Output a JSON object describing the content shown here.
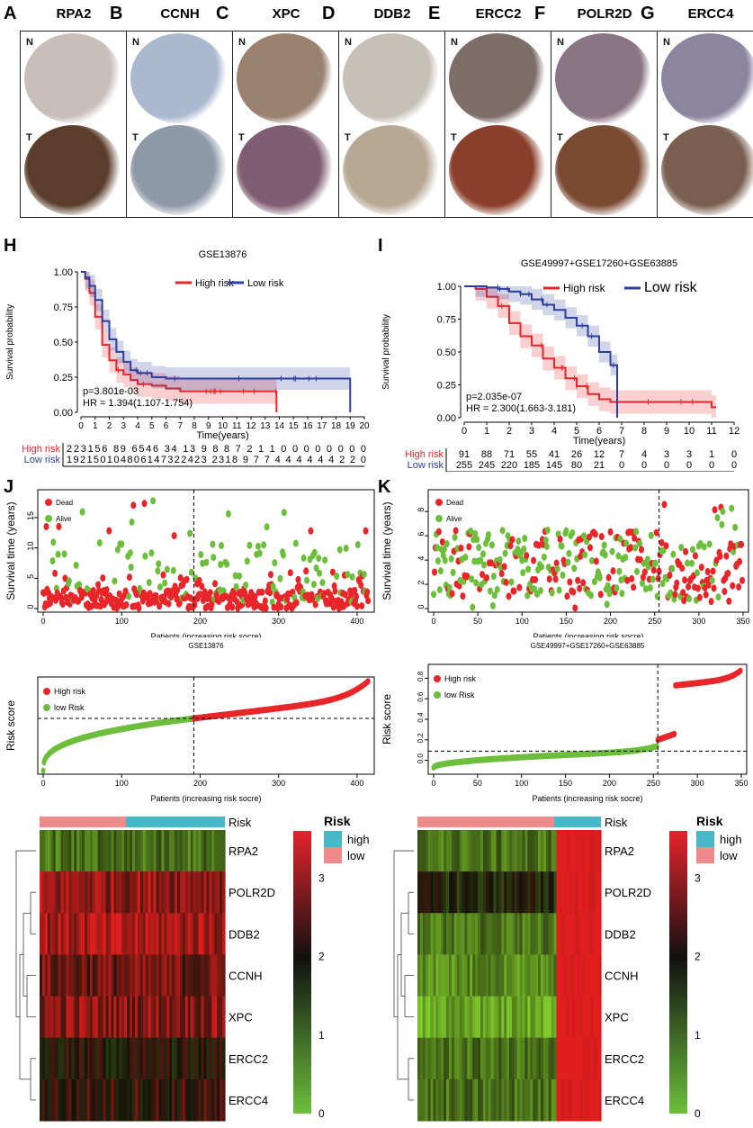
{
  "ihc": {
    "panels": [
      {
        "letter": "A",
        "gene": "RPA2",
        "n_color": "#c9bfba",
        "t_color": "#5a3e2b"
      },
      {
        "letter": "B",
        "gene": "CCNH",
        "n_color": "#aab9cf",
        "t_color": "#8d98a8"
      },
      {
        "letter": "C",
        "gene": "XPC",
        "n_color": "#9a8170",
        "t_color": "#7f5d72"
      },
      {
        "letter": "D",
        "gene": "DDB2",
        "n_color": "#c6c0b8",
        "t_color": "#b7a893"
      },
      {
        "letter": "E",
        "gene": "ERCC2",
        "n_color": "#7d6e6a",
        "t_color": "#8a3f2b"
      },
      {
        "letter": "F",
        "gene": "POLR2D",
        "n_color": "#8a7585",
        "t_color": "#7b4a32"
      },
      {
        "letter": "G",
        "gene": "ERCC4",
        "n_color": "#8b85a0",
        "t_color": "#7a5f50"
      }
    ],
    "n_label": "N",
    "t_label": "T"
  },
  "chart_data": [
    {
      "id": "H",
      "type": "line",
      "title": "GSE13876",
      "xlabel": "Time(years)",
      "ylabel": "Survival probability",
      "xlim": [
        0,
        20
      ],
      "ylim": [
        0,
        1
      ],
      "xticks": [
        0,
        1,
        2,
        3,
        4,
        5,
        6,
        7,
        8,
        9,
        10,
        11,
        12,
        13,
        14,
        15,
        16,
        17,
        18,
        19,
        20
      ],
      "yticks": [
        "0.00",
        "0.25",
        "0.50",
        "0.75",
        "1.00"
      ],
      "legend": [
        "High risk",
        "Low risk"
      ],
      "pvalue": "p=3.801e-03",
      "hr": "HR = 1.394(1.107-1.754)",
      "series": [
        {
          "name": "High risk",
          "color": "#e8262a",
          "x": [
            0,
            0.3,
            0.6,
            1,
            1.5,
            2,
            2.5,
            3,
            3.5,
            4,
            5,
            6,
            7,
            13.8,
            13.8
          ],
          "y": [
            1,
            0.95,
            0.85,
            0.68,
            0.48,
            0.37,
            0.3,
            0.27,
            0.23,
            0.2,
            0.19,
            0.17,
            0.15,
            0.15,
            0
          ]
        },
        {
          "name": "Low risk",
          "color": "#2c3e9e",
          "x": [
            0,
            0.3,
            0.6,
            1,
            1.5,
            2,
            2.5,
            3,
            3.5,
            4,
            5,
            6,
            7,
            14,
            19,
            19
          ],
          "y": [
            1,
            0.96,
            0.9,
            0.8,
            0.65,
            0.52,
            0.43,
            0.36,
            0.3,
            0.28,
            0.25,
            0.24,
            0.24,
            0.24,
            0.14,
            0
          ]
        }
      ],
      "risk_table": {
        "rows": [
          {
            "label": "High risk",
            "color": "#e8262a",
            "text": "223156 89 6546 34 13  9   8   8   7   2   1   1   0   0   0   0   0   0   0   0"
          },
          {
            "label": "Low risk",
            "color": "#2c3e9e",
            "text": "192150104806147322423 2318  9   7   7   4   4   4   4   4   4   2   2   0"
          }
        ],
        "xticks": [
          0,
          1,
          2,
          3,
          4,
          5,
          6,
          7,
          8,
          9,
          10,
          11,
          12,
          13,
          14,
          15,
          16,
          17,
          18,
          19,
          20
        ],
        "xlabel": "Time(years)"
      }
    },
    {
      "id": "I",
      "type": "line",
      "title": "GSE49997+GSE17260+GSE63885",
      "xlabel": "Time(years)",
      "ylabel": "Survival probability",
      "xlim": [
        0,
        12
      ],
      "ylim": [
        0,
        1
      ],
      "xticks": [
        0,
        1,
        2,
        3,
        4,
        5,
        6,
        7,
        8,
        9,
        10,
        11,
        12
      ],
      "yticks": [
        "0.00",
        "0.25",
        "0.50",
        "0.75",
        "1.00"
      ],
      "legend": [
        "High risk",
        "Low risk"
      ],
      "pvalue": "p=2.035e-07",
      "hr": "HR = 2.300(1.663-3.181)",
      "series": [
        {
          "name": "High risk",
          "color": "#e8262a",
          "x": [
            0,
            0.5,
            1,
            1.5,
            2,
            2.5,
            3,
            3.5,
            4,
            4.5,
            5,
            5.5,
            6,
            6.5,
            7,
            9,
            11,
            11.2
          ],
          "y": [
            1,
            0.98,
            0.92,
            0.85,
            0.72,
            0.62,
            0.55,
            0.45,
            0.38,
            0.3,
            0.24,
            0.18,
            0.14,
            0.12,
            0.12,
            0.12,
            0.08,
            0.08
          ]
        },
        {
          "name": "Low risk",
          "color": "#2c3e9e",
          "x": [
            0,
            0.5,
            1,
            1.5,
            2,
            2.5,
            3,
            3.5,
            4,
            4.5,
            5,
            5.5,
            6,
            6.5,
            6.8,
            6.8
          ],
          "y": [
            1,
            1,
            0.99,
            0.98,
            0.96,
            0.94,
            0.9,
            0.86,
            0.82,
            0.76,
            0.7,
            0.62,
            0.5,
            0.4,
            0.38,
            0
          ]
        }
      ],
      "risk_table": {
        "rows": [
          {
            "label": "High risk",
            "color": "#e8262a",
            "values": [
              91,
              88,
              71,
              55,
              41,
              26,
              12,
              7,
              4,
              3,
              3,
              1,
              0
            ]
          },
          {
            "label": "Low risk",
            "color": "#2c3e9e",
            "values": [
              255,
              245,
              220,
              185,
              145,
              80,
              21,
              0,
              0,
              0,
              0,
              0,
              0
            ]
          }
        ],
        "xticks": [
          0,
          1,
          2,
          3,
          4,
          5,
          6,
          7,
          8,
          9,
          10,
          11,
          12
        ],
        "xlabel": "Time(years)"
      }
    },
    {
      "id": "J-surv",
      "type": "scatter",
      "ylabel": "Survival time (years)",
      "xlabel": "Patients (increasing risk socre)",
      "xticks": [
        0,
        100,
        200,
        300,
        400
      ],
      "yticks": [
        0,
        5,
        10,
        15
      ],
      "xlim": [
        0,
        415
      ],
      "ylim": [
        0,
        19
      ],
      "cutoff": 192,
      "legend": [
        "Dead",
        "Alive"
      ]
    },
    {
      "id": "K-surv",
      "type": "scatter",
      "ylabel": "Survival time (years)",
      "xlabel": "Patients (increasing risk socre)",
      "xticks": [
        0,
        50,
        100,
        150,
        200,
        250,
        300,
        350
      ],
      "yticks": [
        0,
        2,
        4,
        6,
        8
      ],
      "xlim": [
        0,
        350
      ],
      "ylim": [
        0,
        9.5
      ],
      "cutoff": 255,
      "legend": [
        "Dead",
        "Alive"
      ]
    },
    {
      "id": "J-risk",
      "type": "scatter",
      "title": "GSE13876",
      "ylabel": "Risk score",
      "xlabel": "Patients (increasing risk socre)",
      "xticks": [
        0,
        100,
        200,
        300,
        400
      ],
      "xlim": [
        0,
        415
      ],
      "cutoff": 192,
      "legend": [
        "High risk",
        "low Risk"
      ]
    },
    {
      "id": "K-risk",
      "type": "scatter",
      "title": "GSE49997+GSE17260+GSE63885",
      "ylabel": "Risk score",
      "xlabel": "Patients (increasing risk socre)",
      "xticks": [
        0,
        50,
        100,
        150,
        200,
        250,
        300,
        350
      ],
      "yticks": [
        "0.0",
        "0.2",
        "0.4",
        "0.6",
        "0.8"
      ],
      "xlim": [
        0,
        350
      ],
      "ylim": [
        -0.1,
        0.9
      ],
      "cutoff": 255,
      "legend": [
        "High risk",
        "low Risk"
      ]
    },
    {
      "id": "J-heat",
      "type": "heatmap",
      "rows": [
        "Risk",
        "RPA2",
        "POLR2D",
        "DDB2",
        "CCNH",
        "XPC",
        "ERCC2",
        "ERCC4"
      ],
      "legend_title": "Risk",
      "legend_items": [
        "high",
        "low"
      ],
      "scale": [
        "0",
        "1",
        "2",
        "3"
      ]
    },
    {
      "id": "K-heat",
      "type": "heatmap",
      "rows": [
        "Risk",
        "RPA2",
        "POLR2D",
        "DDB2",
        "CCNH",
        "XPC",
        "ERCC2",
        "ERCC4"
      ],
      "legend_title": "Risk",
      "legend_items": [
        "high",
        "low"
      ],
      "scale": [
        "0",
        "1",
        "2",
        "3"
      ]
    }
  ],
  "letters": {
    "H": "H",
    "I": "I",
    "J": "J",
    "K": "K"
  },
  "colors": {
    "red": "#e8262a",
    "blue": "#2c3e9e",
    "green": "#6cbe3c",
    "teal": "#48b8c8",
    "pink": "#f08a8a"
  }
}
